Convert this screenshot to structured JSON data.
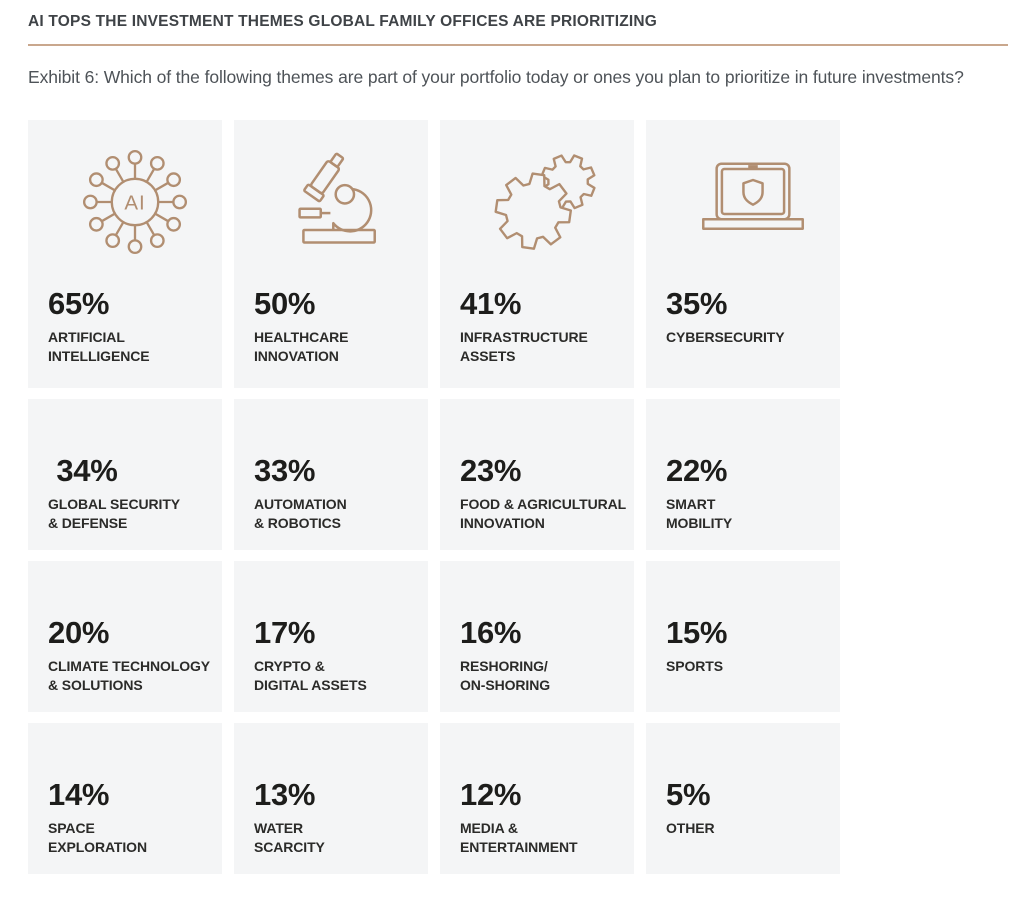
{
  "header": {
    "title": "AI TOPS THE INVESTMENT THEMES GLOBAL FAMILY OFFICES ARE PRIORITIZING",
    "exhibit_label": "Exhibit 6:",
    "question": "Which of the following themes are part of your portfolio today or ones you plan to prioritize in future investments?"
  },
  "colors": {
    "accent_tan": "#b18e71",
    "divider": "#c9a78d",
    "card_background": "#f4f5f6",
    "percent_text": "#1d1d1b",
    "label_text": "#2b2b29",
    "title_text": "#3f4347",
    "subtitle_text": "#4e5358"
  },
  "chart_data": {
    "type": "table",
    "title": "AI TOPS THE INVESTMENT THEMES GLOBAL FAMILY OFFICES ARE PRIORITIZING",
    "subtitle": "Exhibit 6: Which of the following themes are part of your portfolio today or ones you plan to prioritize in future investments?",
    "unit": "%",
    "layout": "4x4 grid of stat cards, descending values, icons on first row only",
    "categories": [
      "Artificial Intelligence",
      "Healthcare Innovation",
      "Infrastructure Assets",
      "Cybersecurity",
      "Global Security & Defense",
      "Automation & Robotics",
      "Food & Agricultural Innovation",
      "Smart Mobility",
      "Climate Technology & Solutions",
      "Crypto & Digital Assets",
      "Reshoring/On-Shoring",
      "Sports",
      "Space Exploration",
      "Water Scarcity",
      "Media & Entertainment",
      "Other"
    ],
    "values": [
      65,
      50,
      41,
      35,
      34,
      33,
      23,
      22,
      20,
      17,
      16,
      15,
      14,
      13,
      12,
      5
    ]
  },
  "cards": [
    {
      "value": "65%",
      "lines": [
        "ARTIFICIAL",
        "INTELLIGENCE"
      ],
      "icon": "ai-network-icon"
    },
    {
      "value": "50%",
      "lines": [
        "HEALTHCARE",
        "INNOVATION"
      ],
      "icon": "microscope-icon"
    },
    {
      "value": "41%",
      "lines": [
        "INFRASTRUCTURE",
        "ASSETS"
      ],
      "icon": "gears-icon"
    },
    {
      "value": "35%",
      "lines": [
        "CYBERSECURITY"
      ],
      "icon": "laptop-shield-icon"
    },
    {
      "value": " 34%",
      "lines": [
        "GLOBAL SECURITY",
        "& DEFENSE"
      ]
    },
    {
      "value": "33%",
      "lines": [
        "AUTOMATION",
        "& ROBOTICS"
      ]
    },
    {
      "value": "23%",
      "lines": [
        "FOOD & AGRICULTURAL",
        "INNOVATION"
      ]
    },
    {
      "value": "22%",
      "lines": [
        "SMART",
        "MOBILITY"
      ]
    },
    {
      "value": "20%",
      "lines": [
        "CLIMATE TECHNOLOGY",
        "& SOLUTIONS"
      ]
    },
    {
      "value": "17%",
      "lines": [
        "CRYPTO &",
        "DIGITAL ASSETS"
      ]
    },
    {
      "value": "16%",
      "lines": [
        "RESHORING/",
        "ON-SHORING"
      ]
    },
    {
      "value": "15%",
      "lines": [
        "SPORTS"
      ]
    },
    {
      "value": "14%",
      "lines": [
        "SPACE",
        "EXPLORATION"
      ]
    },
    {
      "value": "13%",
      "lines": [
        "WATER",
        "SCARCITY"
      ]
    },
    {
      "value": "12%",
      "lines": [
        "MEDIA &",
        "ENTERTAINMENT"
      ]
    },
    {
      "value": "5%",
      "lines": [
        "OTHER"
      ]
    }
  ]
}
